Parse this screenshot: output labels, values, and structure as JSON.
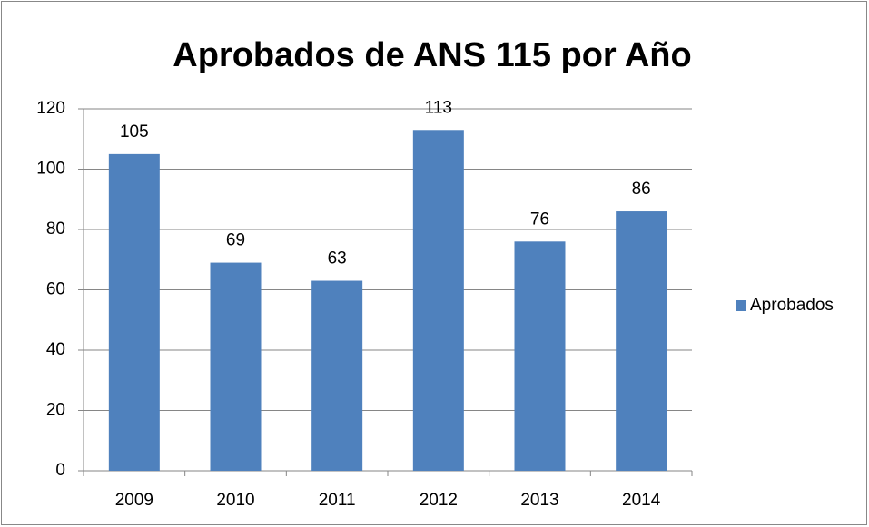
{
  "chart_data": {
    "type": "bar",
    "title": "Aprobados de ANS 115 por Año",
    "categories": [
      "2009",
      "2010",
      "2011",
      "2012",
      "2013",
      "2014"
    ],
    "series": [
      {
        "name": "Aprobados",
        "color": "#4f81bd",
        "values": [
          105,
          69,
          63,
          113,
          76,
          86
        ]
      }
    ],
    "ylim": [
      0,
      120
    ],
    "yticks": [
      0,
      20,
      40,
      60,
      80,
      100,
      120
    ],
    "grid": true,
    "legend": "right"
  }
}
